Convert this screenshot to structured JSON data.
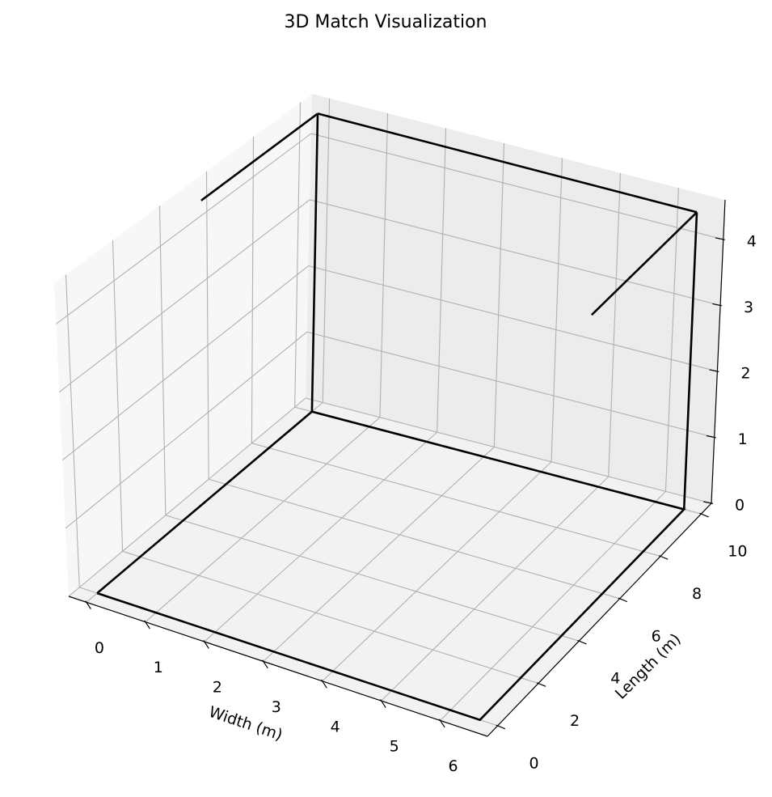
{
  "chart_data": {
    "type": "line3d",
    "title": "3D Match Visualization",
    "xlabel": "Width (m)",
    "ylabel": "Length (m)",
    "zlabel": "",
    "xlim": [
      -0.3,
      6.8
    ],
    "ylim": [
      -0.5,
      10.5
    ],
    "zlim": [
      0,
      4.6
    ],
    "xticks": [
      0,
      1,
      2,
      3,
      4,
      5,
      6
    ],
    "yticks": [
      0,
      2,
      4,
      6,
      8,
      10
    ],
    "zticks": [
      0,
      1,
      2,
      3,
      4
    ],
    "grid": true,
    "series": [
      {
        "color": "#000000",
        "points": [
          [
            0,
            0,
            0
          ],
          [
            6.5,
            0,
            0
          ],
          [
            6.5,
            10,
            0
          ],
          [
            0,
            10,
            0
          ],
          [
            0,
            0,
            0
          ]
        ]
      },
      {
        "color": "#000000",
        "points": [
          [
            6.5,
            10,
            0
          ],
          [
            6.5,
            10,
            4.5
          ]
        ]
      },
      {
        "color": "#000000",
        "points": [
          [
            0,
            10,
            0
          ],
          [
            0,
            10,
            4.5
          ]
        ]
      },
      {
        "color": "#000000",
        "points": [
          [
            0,
            10,
            4.5
          ],
          [
            6.5,
            10,
            4.5
          ]
        ]
      },
      {
        "color": "#000000",
        "points": [
          [
            6.5,
            10,
            4.5
          ],
          [
            6.5,
            5,
            4.5
          ]
        ]
      },
      {
        "color": "#000000",
        "points": [
          [
            0,
            10,
            4.5
          ],
          [
            0,
            5,
            4.5
          ]
        ]
      }
    ]
  }
}
